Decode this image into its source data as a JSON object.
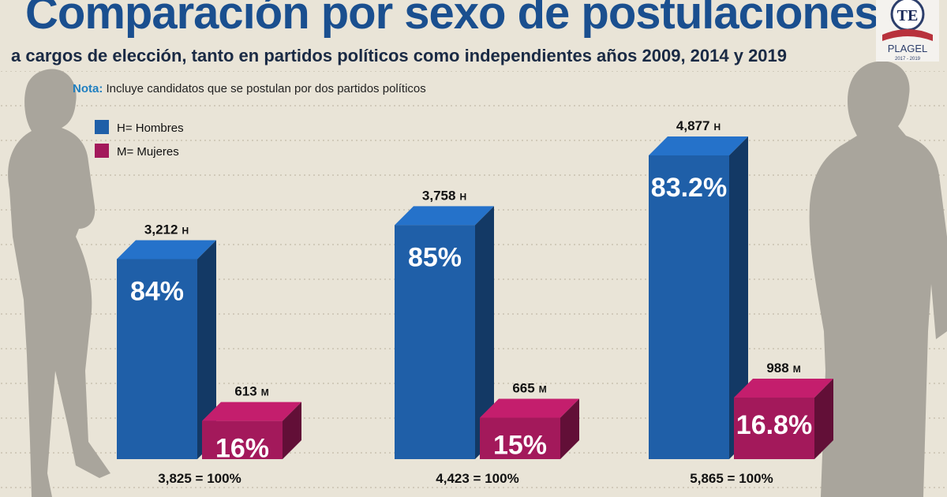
{
  "chart_data": {
    "type": "bar3d",
    "title": "Comparación por sexo de postulaciones",
    "subtitle": "a cargos de elección, tanto en partidos políticos como independientes años 2009, 2014 y 2019",
    "note_label": "Nota:",
    "note": "Incluye candidatos que se postulan por dos partidos políticos",
    "series": [
      {
        "name": "H= Hombres",
        "color": "#1f5fa8",
        "values": [
          3212,
          3758,
          4877
        ],
        "value_labels": [
          "3,212",
          "3,758",
          "4,877"
        ],
        "label_suffix": "H",
        "shares": [
          84,
          85,
          83.2
        ],
        "share_labels": [
          "84%",
          "85%",
          "83.2%"
        ]
      },
      {
        "name": "M= Mujeres",
        "color": "#a3195b",
        "values": [
          613,
          665,
          988
        ],
        "value_labels": [
          "613",
          "665",
          "988"
        ],
        "label_suffix": "M",
        "shares": [
          16,
          15,
          16.8
        ],
        "share_labels": [
          "16%",
          "15%",
          "16.8%"
        ]
      }
    ],
    "totals": [
      3825,
      4423,
      5865
    ],
    "total_labels": [
      "3,825 = 100%",
      "4,423 = 100%",
      "5,865 = 100%"
    ],
    "logo": {
      "mark": "TE",
      "name": "PLAGEL",
      "years": "2017 - 2019"
    }
  }
}
